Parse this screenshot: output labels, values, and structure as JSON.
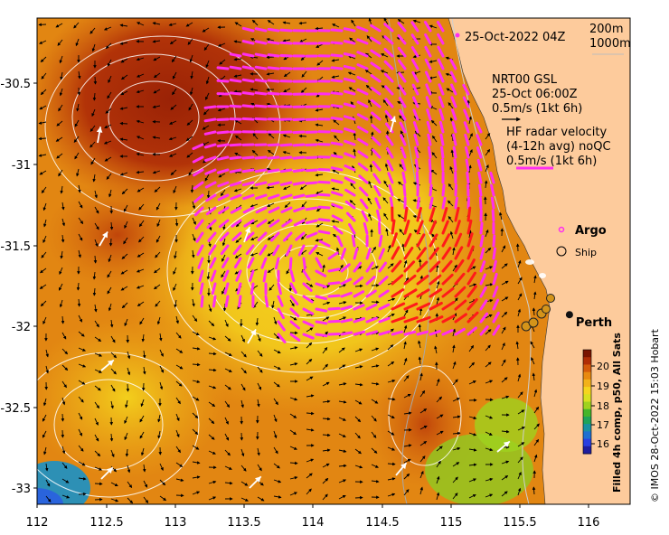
{
  "map": {
    "x_ticks": [
      "112",
      "112.5",
      "113",
      "113.5",
      "114",
      "114.5",
      "115",
      "115.5",
      "116"
    ],
    "y_ticks": [
      "-30.5",
      "-31",
      "-31.5",
      "-32",
      "-32.5",
      "-33"
    ],
    "lon_range": [
      112,
      116.3
    ],
    "lat_range": [
      -33.12,
      -30.12
    ]
  },
  "legend": {
    "timestamp": "25-Oct-2022 04Z",
    "depth_200": "200m",
    "depth_1000": "1000m",
    "gsl_title": "NRT00 GSL",
    "gsl_time": "25-Oct 06:00Z",
    "gsl_scale": "0.5m/s (1kt 6h)",
    "hf_title": "HF radar velocity",
    "hf_avg": "(4-12h avg) noQC",
    "hf_scale": "0.5m/s (1kt 6h)",
    "argo_label": "Argo",
    "ship_label": "Ship"
  },
  "place": {
    "name": "Perth",
    "lon": 115.86,
    "lat": -31.95
  },
  "colorbar": {
    "ticks": [
      "20",
      "19",
      "18",
      "17",
      "16"
    ],
    "title": "Filled 4h comp, p50, All Sats",
    "colors": [
      "#7a1400",
      "#b02d05",
      "#d45a0a",
      "#e8890f",
      "#f2b21a",
      "#f5d51e",
      "#d8e020",
      "#9fd21e",
      "#45b52a",
      "#1fa35a",
      "#1a91a0",
      "#1f6fd0",
      "#2a3fe0",
      "#1f1d9e"
    ]
  },
  "credit": "© IMOS 28-Oct-2022 15:03 Hobart",
  "colors": {
    "land": "#fdcb9c",
    "hf_arrow": "#ff2ef0",
    "hf_arrow_strong": "#ff1a1a",
    "gsl_arrow": "#000000",
    "contour": "#ffffff"
  }
}
